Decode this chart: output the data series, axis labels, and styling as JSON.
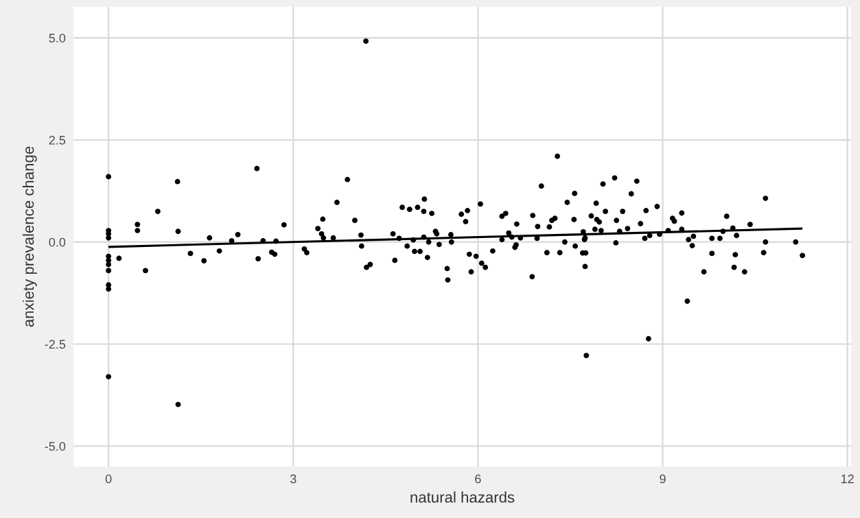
{
  "chart_data": {
    "type": "scatter",
    "xlabel": "natural hazards",
    "ylabel": "anxiety prevalence change",
    "xlim": [
      -0.57,
      12.06
    ],
    "ylim": [
      -5.5,
      5.76
    ],
    "xticks": [
      0,
      3,
      6,
      9,
      12
    ],
    "yticks": [
      {
        "value": -5,
        "label": "-5.0"
      },
      {
        "value": -2.5,
        "label": "-2.5"
      },
      {
        "value": 0,
        "label": "0.0"
      },
      {
        "value": 2.5,
        "label": "2.5"
      },
      {
        "value": 5,
        "label": "5.0"
      }
    ],
    "grid": true,
    "series": [
      {
        "marker": "circle",
        "color": "#000000",
        "x": [
          0,
          0,
          0,
          0,
          0,
          0,
          0,
          0,
          0,
          0,
          0,
          0.17,
          0.47,
          0.47,
          0.6,
          0.8,
          1.12,
          1.13,
          1.13,
          1.33,
          1.55,
          1.64,
          1.8,
          2.0,
          2.1,
          2.41,
          2.43,
          2.51,
          2.65,
          2.7,
          2.72,
          2.85,
          3.18,
          3.22,
          3.4,
          3.48,
          3.46,
          3.49,
          3.65,
          3.71,
          3.88,
          4.0,
          4.1,
          4.11,
          4.18,
          4.19,
          4.25,
          4.62,
          4.65,
          4.72,
          4.77,
          4.89,
          5.02,
          4.85,
          4.95,
          4.97,
          5.06,
          5.13,
          5.12,
          5.12,
          5.18,
          5.2,
          5.25,
          5.31,
          5.33,
          5.37,
          5.5,
          5.51,
          5.56,
          5.57,
          5.73,
          5.8,
          5.83,
          5.86,
          5.89,
          5.97,
          6.04,
          6.06,
          6.12,
          6.24,
          6.39,
          6.39,
          6.45,
          6.5,
          6.55,
          6.6,
          6.62,
          6.63,
          6.69,
          6.88,
          6.89,
          6.96,
          6.97,
          7.03,
          7.12,
          7.16,
          7.2,
          7.25,
          7.29,
          7.33,
          7.41,
          7.45,
          7.57,
          7.56,
          7.58,
          7.71,
          7.73,
          7.74,
          7.7,
          7.75,
          7.74,
          7.76,
          7.84,
          7.92,
          7.93,
          7.9,
          8.0,
          7.97,
          8.03,
          8.07,
          8.22,
          8.24,
          8.25,
          8.3,
          8.35,
          8.43,
          8.49,
          8.58,
          8.64,
          8.71,
          8.73,
          8.79,
          8.77,
          8.91,
          8.95,
          9.09,
          9.16,
          9.19,
          9.31,
          9.31,
          9.42,
          9.48,
          9.5,
          9.4,
          9.67,
          9.8,
          9.8,
          9.93,
          10.04,
          9.98,
          10.16,
          10.18,
          10.14,
          10.2,
          10.33,
          10.42,
          10.64,
          10.67,
          10.67,
          11.16,
          11.27
        ],
        "values": [
          1.6,
          0.28,
          0.2,
          0.1,
          -0.35,
          -0.45,
          -0.55,
          -0.7,
          -1.05,
          -1.15,
          -3.3,
          -0.4,
          0.43,
          0.28,
          -0.7,
          0.75,
          1.48,
          0.26,
          -3.98,
          -0.28,
          -0.46,
          0.1,
          -0.22,
          0.03,
          0.18,
          1.8,
          -0.41,
          0.03,
          -0.25,
          -0.3,
          0.02,
          0.42,
          -0.17,
          -0.26,
          0.33,
          0.56,
          0.2,
          0.1,
          0.1,
          0.97,
          1.53,
          0.53,
          0.17,
          -0.1,
          4.92,
          -0.62,
          -0.55,
          0.2,
          -0.45,
          0.09,
          0.85,
          0.8,
          0.85,
          -0.1,
          0.05,
          -0.23,
          -0.23,
          1.05,
          0.75,
          0.12,
          -0.38,
          0.0,
          0.7,
          0.26,
          0.2,
          -0.06,
          -0.65,
          -0.93,
          0.18,
          0.0,
          0.68,
          0.5,
          0.77,
          -0.3,
          -0.73,
          -0.35,
          0.93,
          -0.52,
          -0.62,
          -0.22,
          0.06,
          0.63,
          0.7,
          0.22,
          0.12,
          -0.13,
          -0.07,
          0.44,
          0.1,
          -0.85,
          0.65,
          0.09,
          0.38,
          1.37,
          -0.26,
          0.37,
          0.53,
          0.58,
          2.1,
          -0.26,
          0.0,
          0.97,
          1.19,
          0.55,
          -0.1,
          0.25,
          0.06,
          0.1,
          -0.27,
          -0.27,
          -0.6,
          -2.78,
          0.64,
          0.95,
          0.55,
          0.31,
          0.28,
          0.49,
          1.42,
          0.75,
          1.57,
          -0.02,
          0.53,
          0.26,
          0.75,
          0.33,
          1.18,
          1.49,
          0.45,
          0.09,
          0.77,
          0.16,
          -2.37,
          0.87,
          0.19,
          0.28,
          0.58,
          0.51,
          0.71,
          0.31,
          0.06,
          -0.09,
          0.14,
          -1.45,
          -0.73,
          0.09,
          -0.28,
          0.09,
          0.63,
          0.26,
          -0.62,
          -0.31,
          0.34,
          0.16,
          -0.73,
          0.43,
          -0.26,
          1.07,
          0.0,
          0.0,
          -0.33
        ]
      },
      {
        "type": "line",
        "color": "#000000",
        "x": [
          0,
          11.27
        ],
        "values": [
          -0.12,
          0.33
        ]
      }
    ]
  }
}
